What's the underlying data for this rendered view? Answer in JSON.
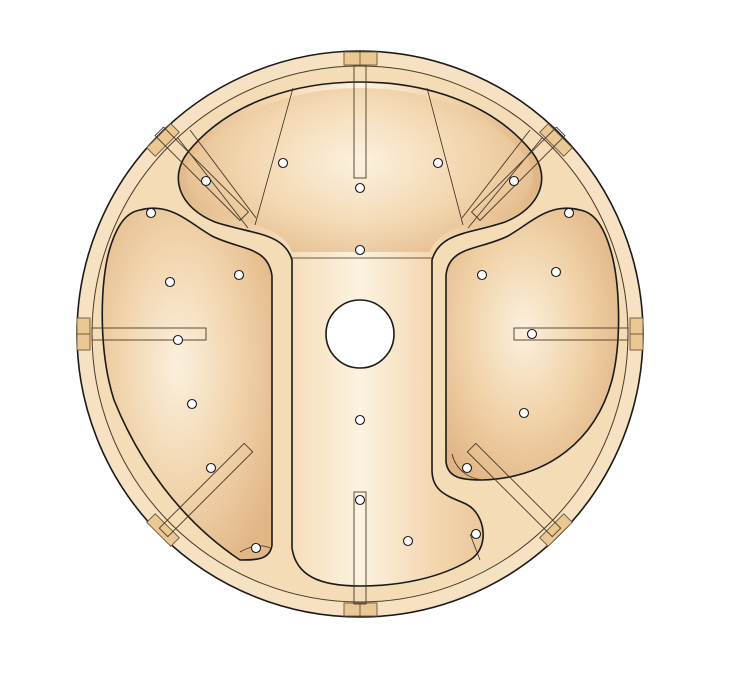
{
  "figure": {
    "subject": "",
    "colors": {
      "background": "#ffffff",
      "body": "#f6e2c2",
      "body_shade": "#eccfa2",
      "pocket_light": "#fbf0dd",
      "pocket_dark": "#e2b788",
      "edge": "#1a1a1a",
      "tab": "#e9c894",
      "hole": "#ffffff"
    },
    "counts": {
      "pockets": 3,
      "outer_tabs": 8,
      "small_holes": 22,
      "center_holes": 1
    }
  }
}
